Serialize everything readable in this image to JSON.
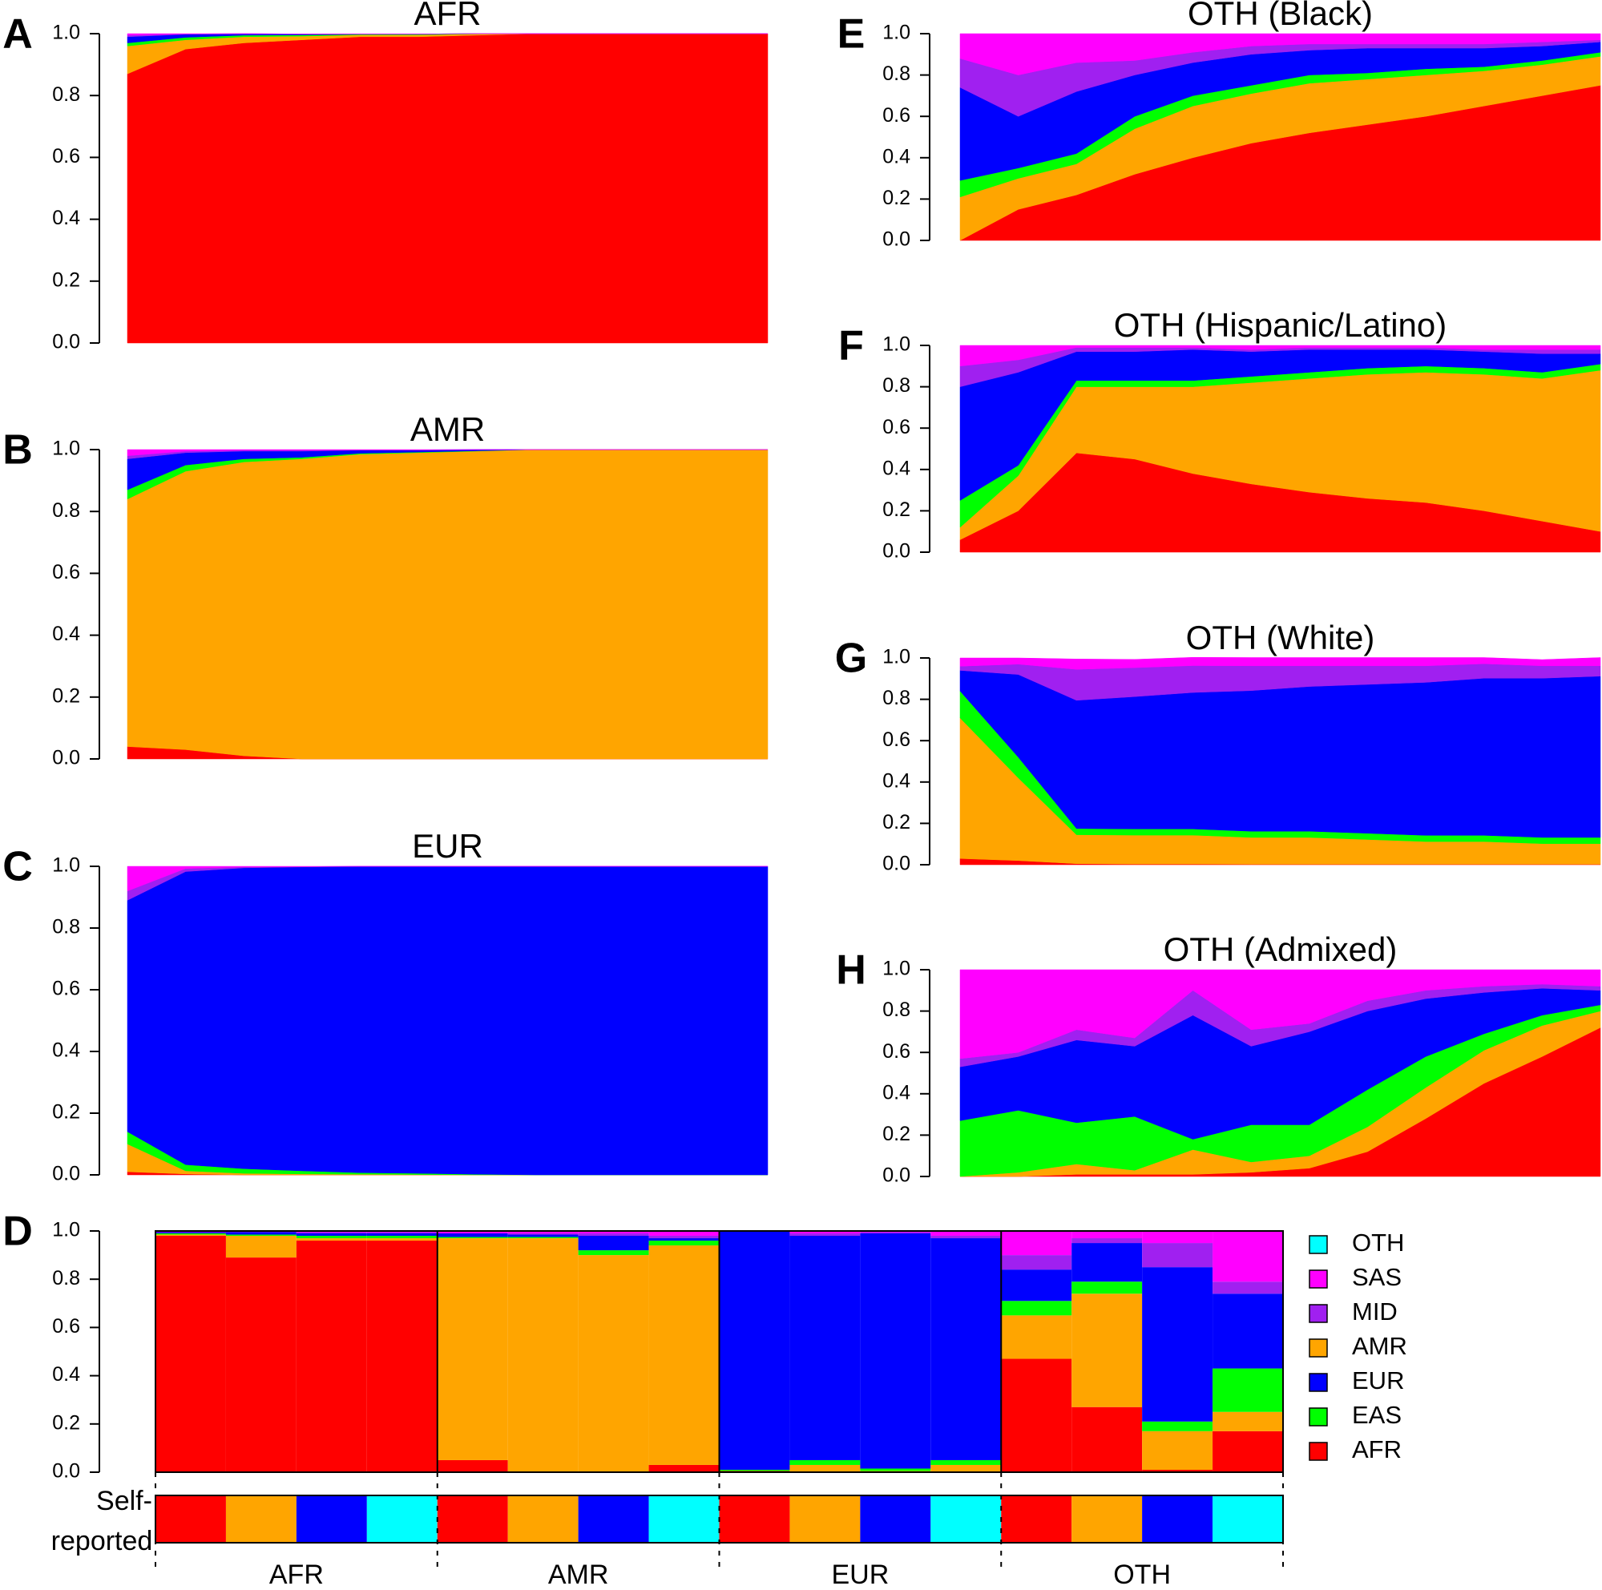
{
  "chart_data": [
    {
      "type": "stacked_area",
      "panel_label": "A",
      "title": "AFR",
      "ylim": [
        0,
        1
      ],
      "yticks": [
        {
          "value": 0,
          "label": "0.0"
        },
        0.2,
        0.4,
        0.6,
        0.8,
        {
          "value": 1,
          "label": "1.0"
        }
      ],
      "series": [
        {
          "name": "AFR",
          "color": "#ff0000",
          "values": [
            0.87,
            0.95,
            0.97,
            0.98,
            0.99,
            0.99,
            0.995,
            1,
            1,
            1,
            1,
            1
          ]
        },
        {
          "name": "AMR",
          "color": "#ffa500",
          "values": [
            0.09,
            0.03,
            0.02,
            0.012,
            0.006,
            0.006,
            0.004,
            0,
            0,
            0,
            0,
            0
          ]
        },
        {
          "name": "EAS",
          "color": "#00ff00",
          "values": [
            0.01,
            0.008,
            0.005,
            0.004,
            0.002,
            0.002,
            0.001,
            0,
            0,
            0,
            0,
            0
          ]
        },
        {
          "name": "EUR",
          "color": "#0000ff",
          "values": [
            0.02,
            0.01,
            0.004,
            0.003,
            0.001,
            0.001,
            0,
            0,
            0,
            0,
            0,
            0
          ]
        },
        {
          "name": "MID",
          "color": "#a020f0",
          "values": [
            0.005,
            0.001,
            0.001,
            0,
            0,
            0,
            0,
            0,
            0,
            0,
            0,
            0
          ]
        },
        {
          "name": "SAS",
          "color": "#ff00ff",
          "values": [
            0.005,
            0.001,
            0,
            0,
            0,
            0,
            0,
            0,
            0,
            0,
            0,
            0
          ]
        }
      ]
    },
    {
      "type": "stacked_area",
      "panel_label": "B",
      "title": "AMR",
      "ylim": [
        0,
        1
      ],
      "yticks": [
        {
          "value": 0,
          "label": "0.0"
        },
        0.2,
        0.4,
        0.6,
        0.8,
        {
          "value": 1,
          "label": "1.0"
        }
      ],
      "series": [
        {
          "name": "AFR",
          "color": "#ff0000",
          "values": [
            0.04,
            0.03,
            0.01,
            0,
            0,
            0,
            0,
            0,
            0,
            0,
            0,
            0
          ]
        },
        {
          "name": "AMR",
          "color": "#ffa500",
          "values": [
            0.8,
            0.9,
            0.95,
            0.97,
            0.985,
            0.99,
            0.995,
            1,
            1,
            1,
            1,
            1
          ]
        },
        {
          "name": "EAS",
          "color": "#00ff00",
          "values": [
            0.03,
            0.02,
            0.01,
            0.005,
            0.003,
            0.002,
            0.001,
            0,
            0,
            0,
            0,
            0
          ]
        },
        {
          "name": "EUR",
          "color": "#0000ff",
          "values": [
            0.1,
            0.04,
            0.025,
            0.02,
            0.01,
            0.006,
            0.004,
            0,
            0,
            0,
            0,
            0
          ]
        },
        {
          "name": "MID",
          "color": "#a020f0",
          "values": [
            0.01,
            0.005,
            0.003,
            0.003,
            0.001,
            0.001,
            0,
            0,
            0,
            0,
            0,
            0
          ]
        },
        {
          "name": "SAS",
          "color": "#ff00ff",
          "values": [
            0.02,
            0.005,
            0.002,
            0.002,
            0.001,
            0.001,
            0,
            0,
            0,
            0,
            0,
            0
          ]
        }
      ]
    },
    {
      "type": "stacked_area",
      "panel_label": "C",
      "title": "EUR",
      "ylim": [
        0,
        1
      ],
      "yticks": [
        {
          "value": 0,
          "label": "0.0"
        },
        0.2,
        0.4,
        0.6,
        0.8,
        {
          "value": 1,
          "label": "1.0"
        }
      ],
      "series": [
        {
          "name": "AFR",
          "color": "#ff0000",
          "values": [
            0.01,
            0.003,
            0,
            0,
            0,
            0,
            0,
            0,
            0,
            0,
            0,
            0
          ]
        },
        {
          "name": "AMR",
          "color": "#ffa500",
          "values": [
            0.09,
            0.01,
            0.005,
            0.003,
            0.002,
            0.001,
            0,
            0,
            0,
            0,
            0,
            0
          ]
        },
        {
          "name": "EAS",
          "color": "#00ff00",
          "values": [
            0.04,
            0.02,
            0.015,
            0.01,
            0.005,
            0.004,
            0.002,
            0,
            0,
            0,
            0,
            0
          ]
        },
        {
          "name": "EUR",
          "color": "#0000ff",
          "values": [
            0.75,
            0.95,
            0.975,
            0.985,
            0.993,
            0.995,
            0.998,
            1,
            1,
            1,
            1,
            1
          ]
        },
        {
          "name": "MID",
          "color": "#a020f0",
          "values": [
            0.03,
            0.01,
            0.003,
            0.001,
            0,
            0,
            0,
            0,
            0,
            0,
            0,
            0
          ]
        },
        {
          "name": "SAS",
          "color": "#ff00ff",
          "values": [
            0.08,
            0.007,
            0.002,
            0.001,
            0,
            0,
            0,
            0,
            0,
            0,
            0,
            0
          ]
        }
      ]
    },
    {
      "type": "stacked_area",
      "panel_label": "E",
      "title": "OTH (Black)",
      "ylim": [
        0,
        1
      ],
      "yticks": [
        {
          "value": 0,
          "label": "0.0"
        },
        0.2,
        0.4,
        0.6,
        0.8,
        {
          "value": 1,
          "label": "1.0"
        }
      ],
      "series": [
        {
          "name": "AFR",
          "color": "#ff0000",
          "values": [
            0,
            0.15,
            0.22,
            0.32,
            0.4,
            0.47,
            0.52,
            0.56,
            0.6,
            0.65,
            0.7,
            0.75
          ]
        },
        {
          "name": "AMR",
          "color": "#ffa500",
          "values": [
            0.21,
            0.15,
            0.15,
            0.22,
            0.25,
            0.24,
            0.24,
            0.22,
            0.2,
            0.17,
            0.15,
            0.14
          ]
        },
        {
          "name": "EAS",
          "color": "#00ff00",
          "values": [
            0.08,
            0.05,
            0.05,
            0.06,
            0.05,
            0.04,
            0.04,
            0.03,
            0.03,
            0.02,
            0.02,
            0.02
          ]
        },
        {
          "name": "EUR",
          "color": "#0000ff",
          "values": [
            0.45,
            0.25,
            0.3,
            0.2,
            0.16,
            0.15,
            0.12,
            0.12,
            0.1,
            0.09,
            0.07,
            0.05
          ]
        },
        {
          "name": "MID",
          "color": "#a020f0",
          "values": [
            0.14,
            0.2,
            0.14,
            0.07,
            0.05,
            0.04,
            0.03,
            0.02,
            0.02,
            0.02,
            0.02,
            0.01
          ]
        },
        {
          "name": "SAS",
          "color": "#ff00ff",
          "values": [
            0.12,
            0.2,
            0.14,
            0.13,
            0.09,
            0.06,
            0.05,
            0.05,
            0.05,
            0.05,
            0.04,
            0.03
          ]
        }
      ]
    },
    {
      "type": "stacked_area",
      "panel_label": "F",
      "title": "OTH (Hispanic/Latino)",
      "ylim": [
        0,
        1
      ],
      "yticks": [
        {
          "value": 0,
          "label": "0.0"
        },
        0.2,
        0.4,
        0.6,
        0.8,
        {
          "value": 1,
          "label": "1.0"
        }
      ],
      "series": [
        {
          "name": "AFR",
          "color": "#ff0000",
          "values": [
            0.06,
            0.2,
            0.48,
            0.45,
            0.38,
            0.33,
            0.29,
            0.26,
            0.24,
            0.2,
            0.15,
            0.1
          ]
        },
        {
          "name": "AMR",
          "color": "#ffa500",
          "values": [
            0.06,
            0.17,
            0.32,
            0.35,
            0.42,
            0.49,
            0.55,
            0.6,
            0.63,
            0.66,
            0.69,
            0.78
          ]
        },
        {
          "name": "EAS",
          "color": "#00ff00",
          "values": [
            0.13,
            0.05,
            0.03,
            0.03,
            0.03,
            0.03,
            0.03,
            0.03,
            0.03,
            0.03,
            0.03,
            0.03
          ]
        },
        {
          "name": "EUR",
          "color": "#0000ff",
          "values": [
            0.55,
            0.45,
            0.14,
            0.14,
            0.15,
            0.12,
            0.11,
            0.09,
            0.08,
            0.08,
            0.09,
            0.05
          ]
        },
        {
          "name": "MID",
          "color": "#a020f0",
          "values": [
            0.1,
            0.06,
            0.02,
            0.02,
            0.01,
            0.01,
            0.01,
            0.01,
            0.01,
            0.01,
            0.02,
            0.02
          ]
        },
        {
          "name": "SAS",
          "color": "#ff00ff",
          "values": [
            0.1,
            0.07,
            0.01,
            0.01,
            0.01,
            0.02,
            0.01,
            0.01,
            0.01,
            0.02,
            0.02,
            0.02
          ]
        }
      ]
    },
    {
      "type": "stacked_area",
      "panel_label": "G",
      "title": "OTH (White)",
      "ylim": [
        0,
        1
      ],
      "yticks": [
        {
          "value": 0,
          "label": "0.0"
        },
        0.2,
        0.4,
        0.6,
        0.8,
        {
          "value": 1,
          "label": "1.0"
        }
      ],
      "series": [
        {
          "name": "AFR",
          "color": "#ff0000",
          "values": [
            0.03,
            0.02,
            0.005,
            0.003,
            0.003,
            0.002,
            0.002,
            0.002,
            0.002,
            0.002,
            0.002,
            0.002
          ]
        },
        {
          "name": "AMR",
          "color": "#ffa500",
          "values": [
            0.68,
            0.4,
            0.14,
            0.14,
            0.14,
            0.13,
            0.13,
            0.12,
            0.11,
            0.11,
            0.1,
            0.1
          ]
        },
        {
          "name": "EAS",
          "color": "#00ff00",
          "values": [
            0.13,
            0.1,
            0.03,
            0.03,
            0.03,
            0.03,
            0.03,
            0.03,
            0.03,
            0.03,
            0.03,
            0.03
          ]
        },
        {
          "name": "EUR",
          "color": "#0000ff",
          "values": [
            0.1,
            0.4,
            0.62,
            0.64,
            0.66,
            0.68,
            0.7,
            0.72,
            0.74,
            0.76,
            0.77,
            0.78
          ]
        },
        {
          "name": "MID",
          "color": "#a020f0",
          "values": [
            0.02,
            0.05,
            0.15,
            0.14,
            0.13,
            0.12,
            0.1,
            0.09,
            0.08,
            0.07,
            0.06,
            0.05
          ]
        },
        {
          "name": "SAS",
          "color": "#ff00ff",
          "values": [
            0.04,
            0.03,
            0.05,
            0.04,
            0.04,
            0.04,
            0.04,
            0.04,
            0.04,
            0.03,
            0.03,
            0.04
          ]
        }
      ]
    },
    {
      "type": "stacked_area",
      "panel_label": "H",
      "title": "OTH (Admixed)",
      "ylim": [
        0,
        1
      ],
      "yticks": [
        {
          "value": 0,
          "label": "0.0"
        },
        0.2,
        0.4,
        0.6,
        0.8,
        {
          "value": 1,
          "label": "1.0"
        }
      ],
      "series": [
        {
          "name": "AFR",
          "color": "#ff0000",
          "values": [
            0,
            0,
            0.01,
            0.01,
            0.01,
            0.02,
            0.04,
            0.12,
            0.28,
            0.45,
            0.58,
            0.72
          ]
        },
        {
          "name": "AMR",
          "color": "#ffa500",
          "values": [
            0,
            0.02,
            0.05,
            0.02,
            0.12,
            0.05,
            0.06,
            0.12,
            0.15,
            0.16,
            0.15,
            0.08
          ]
        },
        {
          "name": "EAS",
          "color": "#00ff00",
          "values": [
            0.27,
            0.3,
            0.2,
            0.26,
            0.05,
            0.18,
            0.15,
            0.18,
            0.15,
            0.08,
            0.05,
            0.03
          ]
        },
        {
          "name": "EUR",
          "color": "#0000ff",
          "values": [
            0.26,
            0.26,
            0.4,
            0.34,
            0.6,
            0.38,
            0.45,
            0.38,
            0.28,
            0.2,
            0.13,
            0.07
          ]
        },
        {
          "name": "MID",
          "color": "#a020f0",
          "values": [
            0.04,
            0.02,
            0.05,
            0.04,
            0.12,
            0.08,
            0.04,
            0.05,
            0.04,
            0.03,
            0.02,
            0.02
          ]
        },
        {
          "name": "SAS",
          "color": "#ff00ff",
          "values": [
            0.43,
            0.4,
            0.29,
            0.33,
            0.1,
            0.29,
            0.26,
            0.15,
            0.1,
            0.08,
            0.07,
            0.08
          ]
        }
      ]
    },
    {
      "type": "stacked_bar",
      "panel_label": "D",
      "ylim": [
        0,
        1
      ],
      "yticks": [
        {
          "value": 0,
          "label": "0.0"
        },
        0.2,
        0.4,
        0.6,
        0.8,
        {
          "value": 1,
          "label": "1.0"
        }
      ],
      "groups": [
        "AFR",
        "AMR",
        "EUR",
        "OTH"
      ],
      "self_reported_label": "Self-reported",
      "self_reported": [
        "AFR",
        "AMR",
        "EUR",
        "OTH",
        "AFR",
        "AMR",
        "EUR",
        "OTH",
        "AFR",
        "AMR",
        "EUR",
        "OTH",
        "AFR",
        "AMR",
        "EUR",
        "OTH"
      ],
      "legend": [
        {
          "name": "OTH",
          "color": "#00ffff"
        },
        {
          "name": "SAS",
          "color": "#ff00ff"
        },
        {
          "name": "MID",
          "color": "#a020f0"
        },
        {
          "name": "AMR",
          "color": "#ffa500"
        },
        {
          "name": "EUR",
          "color": "#0000ff"
        },
        {
          "name": "EAS",
          "color": "#00ff00"
        },
        {
          "name": "AFR",
          "color": "#ff0000"
        }
      ],
      "series": [
        {
          "name": "AFR",
          "color": "#ff0000",
          "values": [
            0.98,
            0.89,
            0.96,
            0.96,
            0.05,
            0,
            0,
            0.03,
            0.005,
            0,
            0,
            0,
            0.47,
            0.27,
            0.01,
            0.17
          ]
        },
        {
          "name": "AMR",
          "color": "#ffa500",
          "values": [
            0.005,
            0.09,
            0.01,
            0.01,
            0.92,
            0.97,
            0.9,
            0.91,
            0,
            0.03,
            0.005,
            0.03,
            0.18,
            0.47,
            0.16,
            0.08
          ]
        },
        {
          "name": "EAS",
          "color": "#00ff00",
          "values": [
            0.005,
            0.005,
            0.01,
            0.01,
            0.005,
            0.005,
            0.02,
            0.02,
            0.005,
            0.02,
            0.01,
            0.02,
            0.06,
            0.05,
            0.04,
            0.18
          ]
        },
        {
          "name": "EUR",
          "color": "#0000ff",
          "values": [
            0.005,
            0.01,
            0.01,
            0.01,
            0.015,
            0.01,
            0.06,
            0.01,
            0.99,
            0.93,
            0.975,
            0.92,
            0.13,
            0.16,
            0.64,
            0.31
          ]
        },
        {
          "name": "MID",
          "color": "#a020f0",
          "values": [
            0,
            0.003,
            0.005,
            0.005,
            0,
            0.005,
            0.01,
            0.01,
            0,
            0.01,
            0.005,
            0.01,
            0.06,
            0.02,
            0.1,
            0.05
          ]
        },
        {
          "name": "SAS",
          "color": "#ff00ff",
          "values": [
            0.005,
            0.002,
            0.005,
            0.005,
            0.01,
            0.01,
            0.01,
            0.02,
            0,
            0.01,
            0.005,
            0.02,
            0.1,
            0.03,
            0.05,
            0.21
          ]
        }
      ]
    }
  ]
}
